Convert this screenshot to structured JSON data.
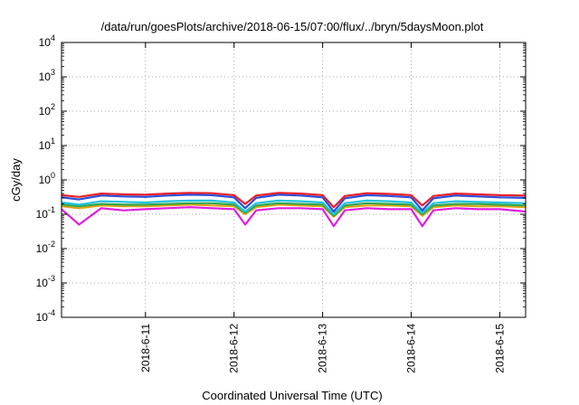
{
  "chart_data": {
    "type": "line",
    "title": "/data/run/goesPlots/archive/2018-06-15/07:00/flux/../bryn/5daysMoon.plot",
    "xlabel": "Coordinated Universal Time (UTC)",
    "ylabel": "cGy/day",
    "yscale": "log",
    "ylim": [
      0.0001,
      10000
    ],
    "y_ticks": [
      {
        "value": 0.0001,
        "base": "10",
        "exp": "-4"
      },
      {
        "value": 0.001,
        "base": "10",
        "exp": "-3"
      },
      {
        "value": 0.01,
        "base": "10",
        "exp": "-2"
      },
      {
        "value": 0.1,
        "base": "10",
        "exp": "-1"
      },
      {
        "value": 1,
        "base": "10",
        "exp": "0"
      },
      {
        "value": 10,
        "base": "10",
        "exp": "1"
      },
      {
        "value": 100,
        "base": "10",
        "exp": "2"
      },
      {
        "value": 1000,
        "base": "10",
        "exp": "3"
      },
      {
        "value": 10000,
        "base": "10",
        "exp": "4"
      }
    ],
    "xlim": [
      "2018-06-10 01:15",
      "2018-06-15 07:00"
    ],
    "x_ticks": [
      "2018-6-11",
      "2018-6-12",
      "2018-6-13",
      "2018-6-14",
      "2018-6-15"
    ],
    "grid": true,
    "x": [
      "2018-06-10 01:15",
      "2018-06-10 06:00",
      "2018-06-10 12:00",
      "2018-06-10 18:00",
      "2018-06-11 00:00",
      "2018-06-11 06:00",
      "2018-06-11 12:00",
      "2018-06-11 18:00",
      "2018-06-12 00:00",
      "2018-06-12 03:00",
      "2018-06-12 06:00",
      "2018-06-12 12:00",
      "2018-06-12 18:00",
      "2018-06-13 00:00",
      "2018-06-13 03:00",
      "2018-06-13 06:00",
      "2018-06-13 12:00",
      "2018-06-13 18:00",
      "2018-06-14 00:00",
      "2018-06-14 03:00",
      "2018-06-14 06:00",
      "2018-06-14 12:00",
      "2018-06-14 18:00",
      "2018-06-15 00:00",
      "2018-06-15 07:00"
    ],
    "series": [
      {
        "color": "#e8202a",
        "values": [
          0.36,
          0.32,
          0.4,
          0.38,
          0.37,
          0.4,
          0.42,
          0.41,
          0.36,
          0.2,
          0.35,
          0.42,
          0.4,
          0.36,
          0.16,
          0.34,
          0.41,
          0.39,
          0.36,
          0.18,
          0.34,
          0.4,
          0.38,
          0.36,
          0.35
        ]
      },
      {
        "color": "#2b4fd9",
        "values": [
          0.31,
          0.27,
          0.35,
          0.33,
          0.32,
          0.35,
          0.37,
          0.36,
          0.31,
          0.15,
          0.3,
          0.37,
          0.35,
          0.31,
          0.12,
          0.29,
          0.36,
          0.34,
          0.31,
          0.13,
          0.29,
          0.35,
          0.33,
          0.31,
          0.3
        ]
      },
      {
        "color": "#22c2e0",
        "values": [
          0.22,
          0.19,
          0.24,
          0.23,
          0.22,
          0.24,
          0.25,
          0.25,
          0.22,
          0.12,
          0.21,
          0.25,
          0.24,
          0.22,
          0.1,
          0.21,
          0.25,
          0.24,
          0.22,
          0.11,
          0.21,
          0.24,
          0.23,
          0.22,
          0.21
        ]
      },
      {
        "color": "#2fa84f",
        "values": [
          0.19,
          0.17,
          0.2,
          0.19,
          0.19,
          0.2,
          0.21,
          0.21,
          0.19,
          0.11,
          0.18,
          0.21,
          0.2,
          0.19,
          0.09,
          0.18,
          0.21,
          0.2,
          0.19,
          0.1,
          0.18,
          0.2,
          0.2,
          0.19,
          0.18
        ]
      },
      {
        "color": "#e0a21a",
        "values": [
          0.17,
          0.15,
          0.18,
          0.17,
          0.17,
          0.18,
          0.19,
          0.18,
          0.17,
          0.1,
          0.16,
          0.19,
          0.18,
          0.17,
          0.085,
          0.16,
          0.18,
          0.18,
          0.17,
          0.09,
          0.16,
          0.18,
          0.17,
          0.17,
          0.16
        ]
      },
      {
        "color": "#e01ee0",
        "values": [
          0.14,
          0.05,
          0.15,
          0.13,
          0.14,
          0.15,
          0.16,
          0.15,
          0.14,
          0.05,
          0.13,
          0.15,
          0.15,
          0.14,
          0.045,
          0.13,
          0.15,
          0.14,
          0.14,
          0.045,
          0.13,
          0.15,
          0.14,
          0.14,
          0.12
        ]
      }
    ]
  }
}
